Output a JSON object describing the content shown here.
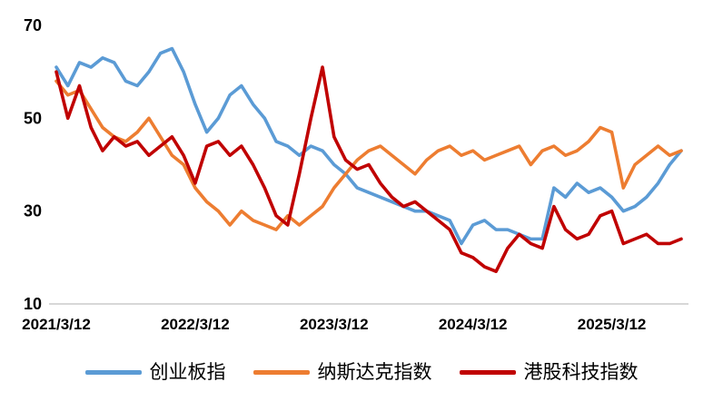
{
  "chart_data": {
    "type": "line",
    "title": "",
    "x_unit": "months since 2021/3/12",
    "x_range": [
      0,
      54
    ],
    "x_tick_positions": [
      0,
      12,
      24,
      36,
      48
    ],
    "x_tick_labels": [
      "2021/3/12",
      "2022/3/12",
      "2023/3/12",
      "2024/3/12",
      "2025/3/12"
    ],
    "y_ticks": [
      10,
      30,
      50,
      70
    ],
    "ylim": [
      10,
      70
    ],
    "grid": false,
    "legend_position": "bottom",
    "axis_line_color": "#BFBFBF",
    "series": [
      {
        "name": "创业板指",
        "color": "#5B9BD5",
        "values": [
          61,
          57,
          62,
          61,
          63,
          62,
          58,
          57,
          60,
          64,
          65,
          60,
          53,
          47,
          50,
          55,
          57,
          53,
          50,
          45,
          44,
          42,
          44,
          43,
          40,
          38,
          35,
          34,
          33,
          32,
          31,
          30,
          30,
          29,
          28,
          23,
          27,
          28,
          26,
          26,
          25,
          24,
          24,
          35,
          33,
          36,
          34,
          35,
          33,
          30,
          31,
          33,
          36,
          40,
          43
        ]
      },
      {
        "name": "纳斯达克指数",
        "color": "#ED7D31",
        "values": [
          58,
          55,
          56,
          52,
          48,
          46,
          45,
          47,
          50,
          46,
          42,
          40,
          35,
          32,
          30,
          27,
          30,
          28,
          27,
          26,
          29,
          27,
          29,
          31,
          35,
          38,
          41,
          43,
          44,
          42,
          40,
          38,
          41,
          43,
          44,
          42,
          43,
          41,
          42,
          43,
          44,
          40,
          43,
          44,
          42,
          43,
          45,
          48,
          47,
          35,
          40,
          42,
          44,
          42,
          43
        ]
      },
      {
        "name": "港股科技指数",
        "color": "#C00000",
        "values": [
          60,
          50,
          57,
          48,
          43,
          46,
          44,
          45,
          42,
          44,
          46,
          42,
          36,
          44,
          45,
          42,
          44,
          40,
          35,
          29,
          27,
          38,
          50,
          61,
          46,
          41,
          39,
          40,
          36,
          33,
          31,
          32,
          30,
          28,
          26,
          21,
          20,
          18,
          17,
          22,
          25,
          23,
          22,
          31,
          26,
          24,
          25,
          29,
          30,
          23,
          24,
          25,
          23,
          23,
          24
        ]
      }
    ]
  }
}
